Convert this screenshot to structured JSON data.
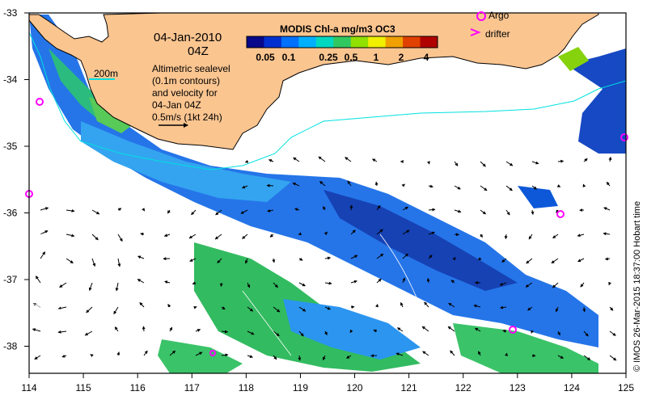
{
  "map": {
    "date": "04-Jan-2010",
    "hour": "04Z",
    "contour_label": "200m",
    "annotation": [
      "Altimetric sealevel",
      "(0.1m contours)",
      "and velocity for",
      "04-Jan 04Z",
      "0.5m/s (1kt 24h)"
    ],
    "colorbar": {
      "title": "MODIS Chl-a mg/m3 OC3",
      "ticks": [
        "0.05",
        "0.1",
        "0.25",
        "0.5",
        "1",
        "2",
        "4"
      ],
      "colors": [
        "#08088a",
        "#0030d0",
        "#0070ff",
        "#00b0ff",
        "#00d8c0",
        "#30c860",
        "#90e000",
        "#f0f000",
        "#f0a000",
        "#e04000",
        "#b00000"
      ]
    },
    "legend": {
      "argo": "Argo",
      "drifter": "drifter"
    },
    "credit": "© IMOS 26-Mar-2015 18:37:00 Hobart time",
    "x_ticks": [
      "114",
      "115",
      "116",
      "117",
      "118",
      "119",
      "120",
      "121",
      "122",
      "123",
      "124",
      "125"
    ],
    "y_ticks": [
      "-33",
      "-34",
      "-35",
      "-36",
      "-37",
      "-38"
    ],
    "colors": {
      "land": "#fbc590",
      "shelf_contour": "#00e0e0",
      "argo": "#ff00ff",
      "frame": "#000000"
    }
  }
}
